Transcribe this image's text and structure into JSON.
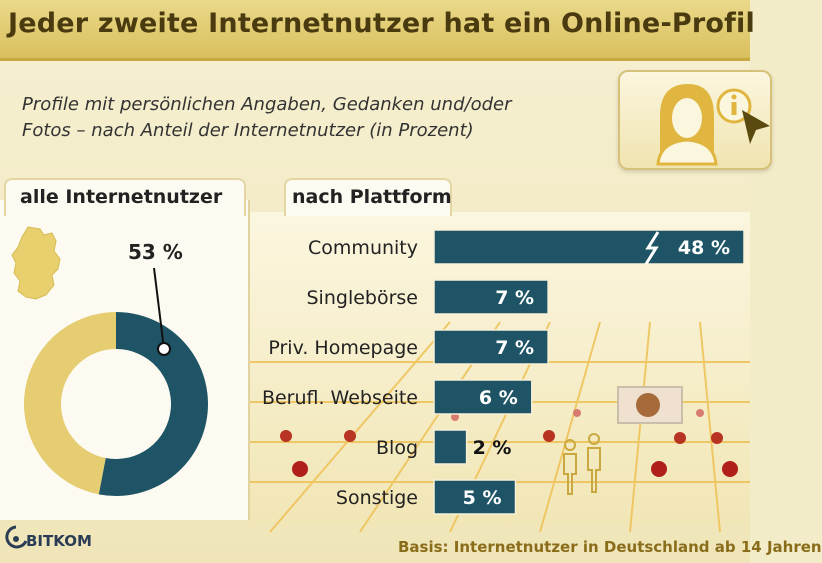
{
  "title": "Jeder zweite Internetnutzer hat ein Online-Profil",
  "subtitle_line1": "Profile mit persönlichen Angaben, Gedanken und/oder",
  "subtitle_line2": "Fotos – nach Anteil der Internetnutzer (in Prozent)",
  "tabs": {
    "left": "alle Internetnutzer",
    "right": "nach Plattform"
  },
  "footnote": "Basis: Internetnutzer in Deutschland ab 14 Jahren",
  "logo": "BITKOM",
  "colors": {
    "bar": "#1e5466",
    "donut_share": "#1e5466",
    "donut_rest": "#e6cd72",
    "title_bg": "#e0c96b"
  },
  "icons": [
    "germany-map-icon",
    "profile-avatar-icon",
    "info-icon",
    "cursor-arrow-icon",
    "bitkom-logo-icon",
    "lightning-icon"
  ],
  "chart_data": [
    {
      "type": "pie",
      "title": "alle Internetnutzer",
      "values": [
        53,
        47
      ],
      "data_label": "53 %"
    },
    {
      "type": "bar",
      "title": "nach Plattform",
      "orientation": "horizontal",
      "categories": [
        "Community",
        "Singlebörse",
        "Priv. Homepage",
        "Berufl. Webseite",
        "Blog",
        "Sonstige"
      ],
      "values": [
        48,
        7,
        7,
        6,
        2,
        5
      ],
      "value_labels": [
        "48 %",
        "7 %",
        "7 %",
        "6 %",
        "2 %",
        "5 %"
      ],
      "axis_break_on": "Community"
    }
  ]
}
